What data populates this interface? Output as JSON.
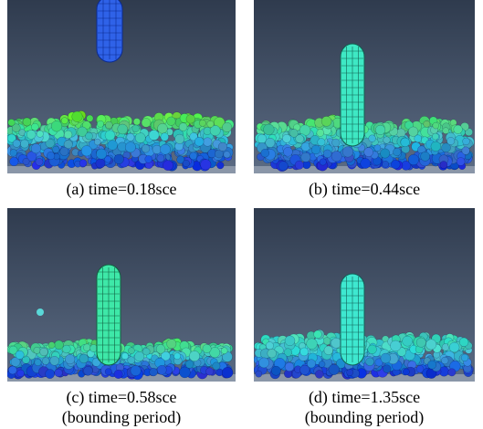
{
  "panels": [
    {
      "caption": [
        "(a) time=0.18sce"
      ]
    },
    {
      "caption": [
        "(b) time=0.44sce"
      ]
    },
    {
      "caption": [
        "(c) time=0.58sce",
        "(bounding period)"
      ]
    },
    {
      "caption": [
        "(d) time=1.35sce",
        "(bounding period)"
      ]
    }
  ]
}
